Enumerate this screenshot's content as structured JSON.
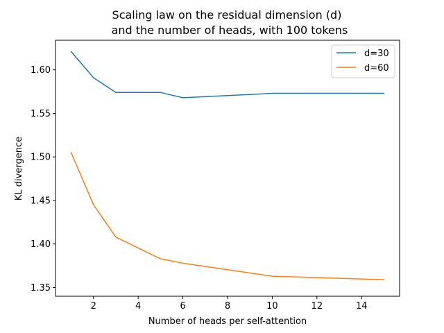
{
  "chart_data": {
    "type": "line",
    "title_line1": "Scaling law on the residual dimension (d)",
    "title_line2": "and the number of heads, with 100 tokens",
    "xlabel": "Number of heads per self-attention",
    "ylabel": "KL divergence",
    "xlim": [
      0.3,
      15.7
    ],
    "ylim": [
      1.34,
      1.634
    ],
    "xticks": [
      2,
      4,
      6,
      8,
      10,
      12,
      14
    ],
    "yticks": [
      1.35,
      1.4,
      1.45,
      1.5,
      1.55,
      1.6
    ],
    "yticks_labels": [
      "1.35",
      "1.40",
      "1.45",
      "1.50",
      "1.55",
      "1.60"
    ],
    "grid": false,
    "legend_position": "top-right",
    "series": [
      {
        "name": "d=30",
        "color": "#1f77b4",
        "x": [
          1,
          2,
          3,
          5,
          6,
          10,
          15
        ],
        "y": [
          1.621,
          1.591,
          1.574,
          1.574,
          1.568,
          1.573,
          1.573
        ]
      },
      {
        "name": "d=60",
        "color": "#ff7f0e",
        "x": [
          1,
          2,
          3,
          5,
          6,
          10,
          15
        ],
        "y": [
          1.505,
          1.445,
          1.408,
          1.383,
          1.378,
          1.363,
          1.359
        ]
      }
    ]
  }
}
